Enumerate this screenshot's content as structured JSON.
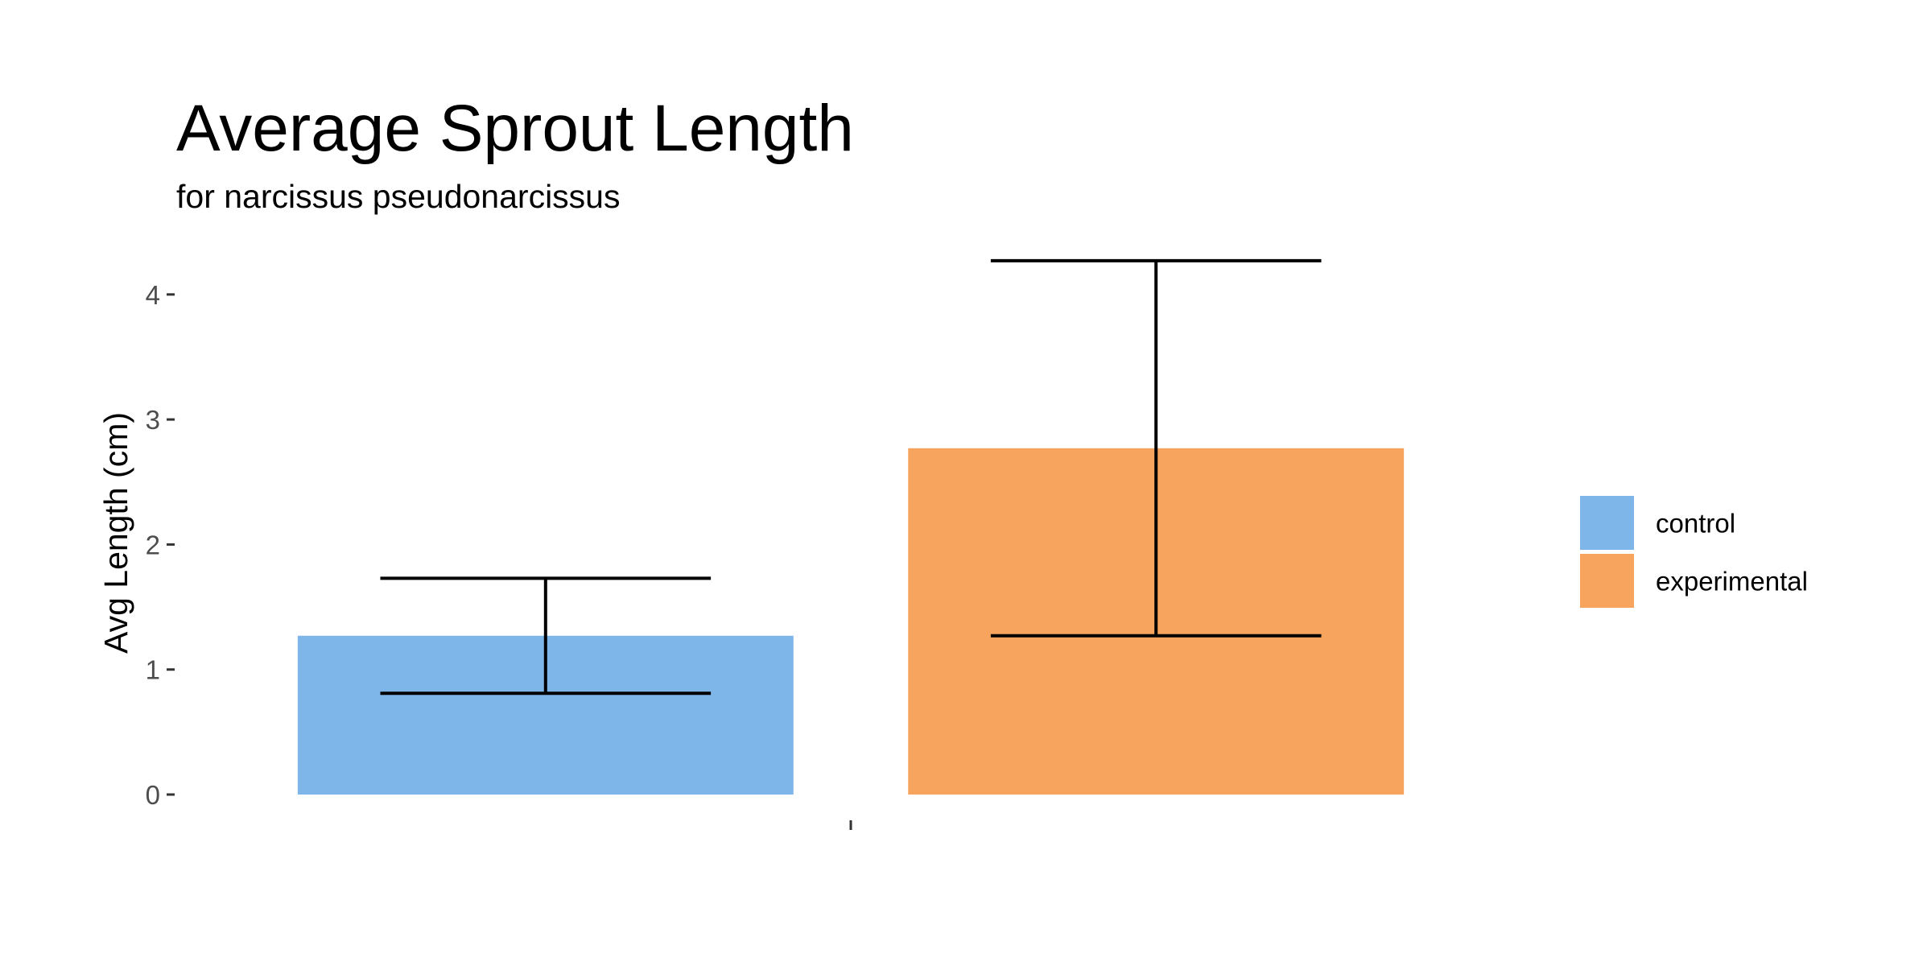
{
  "chart_data": {
    "type": "bar",
    "title": "Average Sprout Length",
    "subtitle": "for  narcissus pseudonarcissus",
    "xlabel": "",
    "ylabel": "Avg Length (cm)",
    "ylim": [
      0,
      4.3
    ],
    "yticks": [
      0,
      1,
      2,
      3,
      4
    ],
    "grid": false,
    "legend_position": "right",
    "categories": [
      ""
    ],
    "series": [
      {
        "name": "control",
        "values": [
          1.27
        ],
        "error_low": [
          0.81
        ],
        "error_high": [
          1.73
        ],
        "color": "#7EB6EA"
      },
      {
        "name": "experimental",
        "values": [
          2.77
        ],
        "error_low": [
          1.27
        ],
        "error_high": [
          4.27
        ],
        "color": "#F7A55E"
      }
    ]
  }
}
